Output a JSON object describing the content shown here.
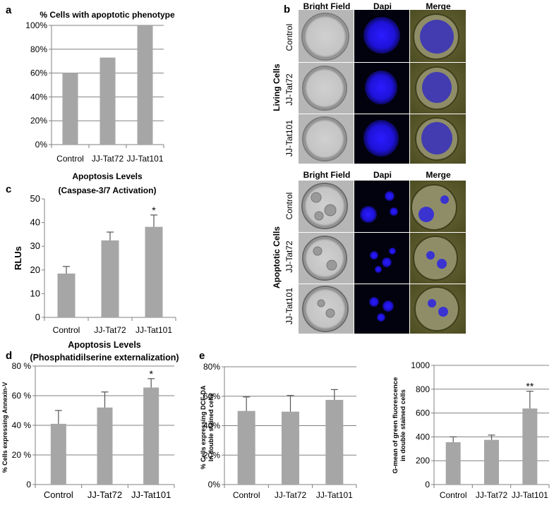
{
  "panel_letters": {
    "a": "a",
    "b": "b",
    "c": "c",
    "d": "d",
    "e": "e"
  },
  "colors": {
    "bar": "#a6a6a6",
    "axis": "#808080",
    "grid": "#808080",
    "error": "#555555",
    "nucleus": "#1f12e8",
    "merge": "#5a5a2e"
  },
  "chart_data": [
    {
      "id": "a",
      "type": "bar",
      "title": "% Cells with apoptotic  phenotype",
      "categories": [
        "Control",
        "JJ-Tat72",
        "JJ-Tat101"
      ],
      "values": [
        60,
        73,
        100
      ],
      "ylim": [
        0,
        100
      ],
      "ytick_values": [
        0,
        20,
        40,
        60,
        80,
        100
      ],
      "ytick_labels": [
        "0%",
        "20%",
        "40%",
        "60%",
        "80%",
        "100%"
      ],
      "grid": true,
      "ylabel": ""
    },
    {
      "id": "c",
      "type": "bar",
      "title": "Apoptosis Levels",
      "subtitle": "(Caspase-3/7 Activation)",
      "categories": [
        "Control",
        "JJ-Tat72",
        "JJ-Tat101"
      ],
      "values": [
        18.5,
        32.5,
        38.2
      ],
      "errors": [
        3.0,
        3.5,
        5.0
      ],
      "significance": [
        "",
        "",
        "*"
      ],
      "ylim": [
        0,
        50
      ],
      "ytick_values": [
        0,
        10,
        20,
        30,
        40,
        50
      ],
      "ytick_labels": [
        "0",
        "10",
        "20",
        "30",
        "40",
        "50"
      ],
      "grid": false,
      "ylabel": "RLUs"
    },
    {
      "id": "d",
      "type": "bar",
      "title": "Apoptosis Levels",
      "subtitle": "(Phosphatidilserine externalization)",
      "categories": [
        "Control",
        "JJ-Tat72",
        "JJ-Tat101"
      ],
      "values": [
        41,
        52,
        65.5
      ],
      "errors": [
        9,
        10.5,
        6
      ],
      "significance": [
        "",
        "",
        "*"
      ],
      "ylim": [
        0,
        80
      ],
      "ytick_values": [
        0,
        20,
        40,
        60,
        80
      ],
      "ytick_labels": [
        "0",
        "20 %",
        "40 %",
        "60 %",
        "80 %"
      ],
      "grid": true,
      "ylabel": "% Cells expressing Annexin-V"
    },
    {
      "id": "e1",
      "type": "bar",
      "title": "",
      "categories": [
        "Control",
        "JJ-Tat72",
        "JJ-Tat101"
      ],
      "values": [
        50,
        49.5,
        57.5
      ],
      "errors": [
        9.5,
        11,
        7
      ],
      "significance": [
        "",
        "",
        ""
      ],
      "ylim": [
        0,
        80
      ],
      "ytick_values": [
        0,
        20,
        40,
        60,
        80
      ],
      "ytick_labels": [
        "0%",
        "20%",
        "40%",
        "60%",
        "80%"
      ],
      "grid": true,
      "ylabel": "% Cells expressing DCF-DA",
      "ylabel2": "In double stained cells"
    },
    {
      "id": "e2",
      "type": "bar",
      "title": "",
      "categories": [
        "Control",
        "JJ-Tat72",
        "JJ-Tat101"
      ],
      "values": [
        355,
        375,
        638
      ],
      "errors": [
        45,
        40,
        145
      ],
      "significance": [
        "",
        "",
        "**"
      ],
      "ylim": [
        0,
        1000
      ],
      "ytick_values": [
        0,
        200,
        400,
        600,
        800,
        1000
      ],
      "ytick_labels": [
        "0",
        "200",
        "400",
        "600",
        "800",
        "1000"
      ],
      "grid": true,
      "ylabel": "G-mean of green fluorescence",
      "ylabel2": "in double stained cells"
    }
  ],
  "micrographs": {
    "column_labels": [
      "Bright Field",
      "Dapi",
      "Merge"
    ],
    "rows": [
      "Control",
      "JJ-Tat72",
      "JJ-Tat101"
    ],
    "living_label": "Living Cells",
    "apoptotic_label": "Apoptotic Cells"
  }
}
